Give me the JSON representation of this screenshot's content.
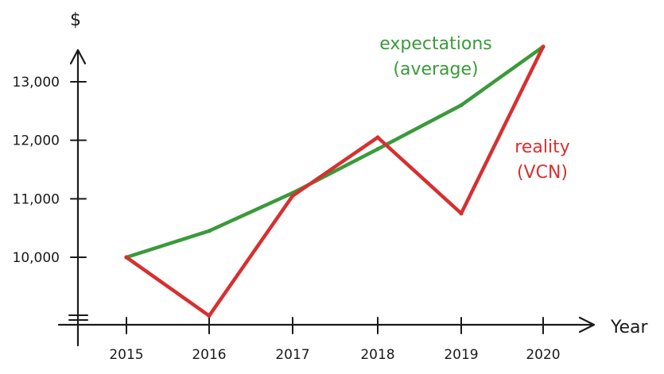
{
  "chart_data": {
    "type": "line",
    "xlabel": "Year",
    "ylabel": "$",
    "x": [
      2015,
      2016,
      2017,
      2018,
      2019,
      2020
    ],
    "x_tick_labels": [
      "2015",
      "2016",
      "2017",
      "2018",
      "2019",
      "2020"
    ],
    "y_ticks": [
      10000,
      11000,
      12000,
      13000
    ],
    "y_tick_labels": [
      "10,000",
      "11,000",
      "12,000",
      "13,000"
    ],
    "ylim": [
      8800,
      13600
    ],
    "grid": false,
    "series": [
      {
        "name_lines": [
          "expectations",
          "(average)"
        ],
        "color": "#3a9a3a",
        "values": [
          10000,
          10450,
          11100,
          11850,
          12600,
          13600
        ]
      },
      {
        "name_lines": [
          "reality",
          "(VCN)"
        ],
        "color": "#d63030",
        "values": [
          10000,
          9000,
          11050,
          12050,
          10750,
          13600
        ]
      }
    ]
  }
}
